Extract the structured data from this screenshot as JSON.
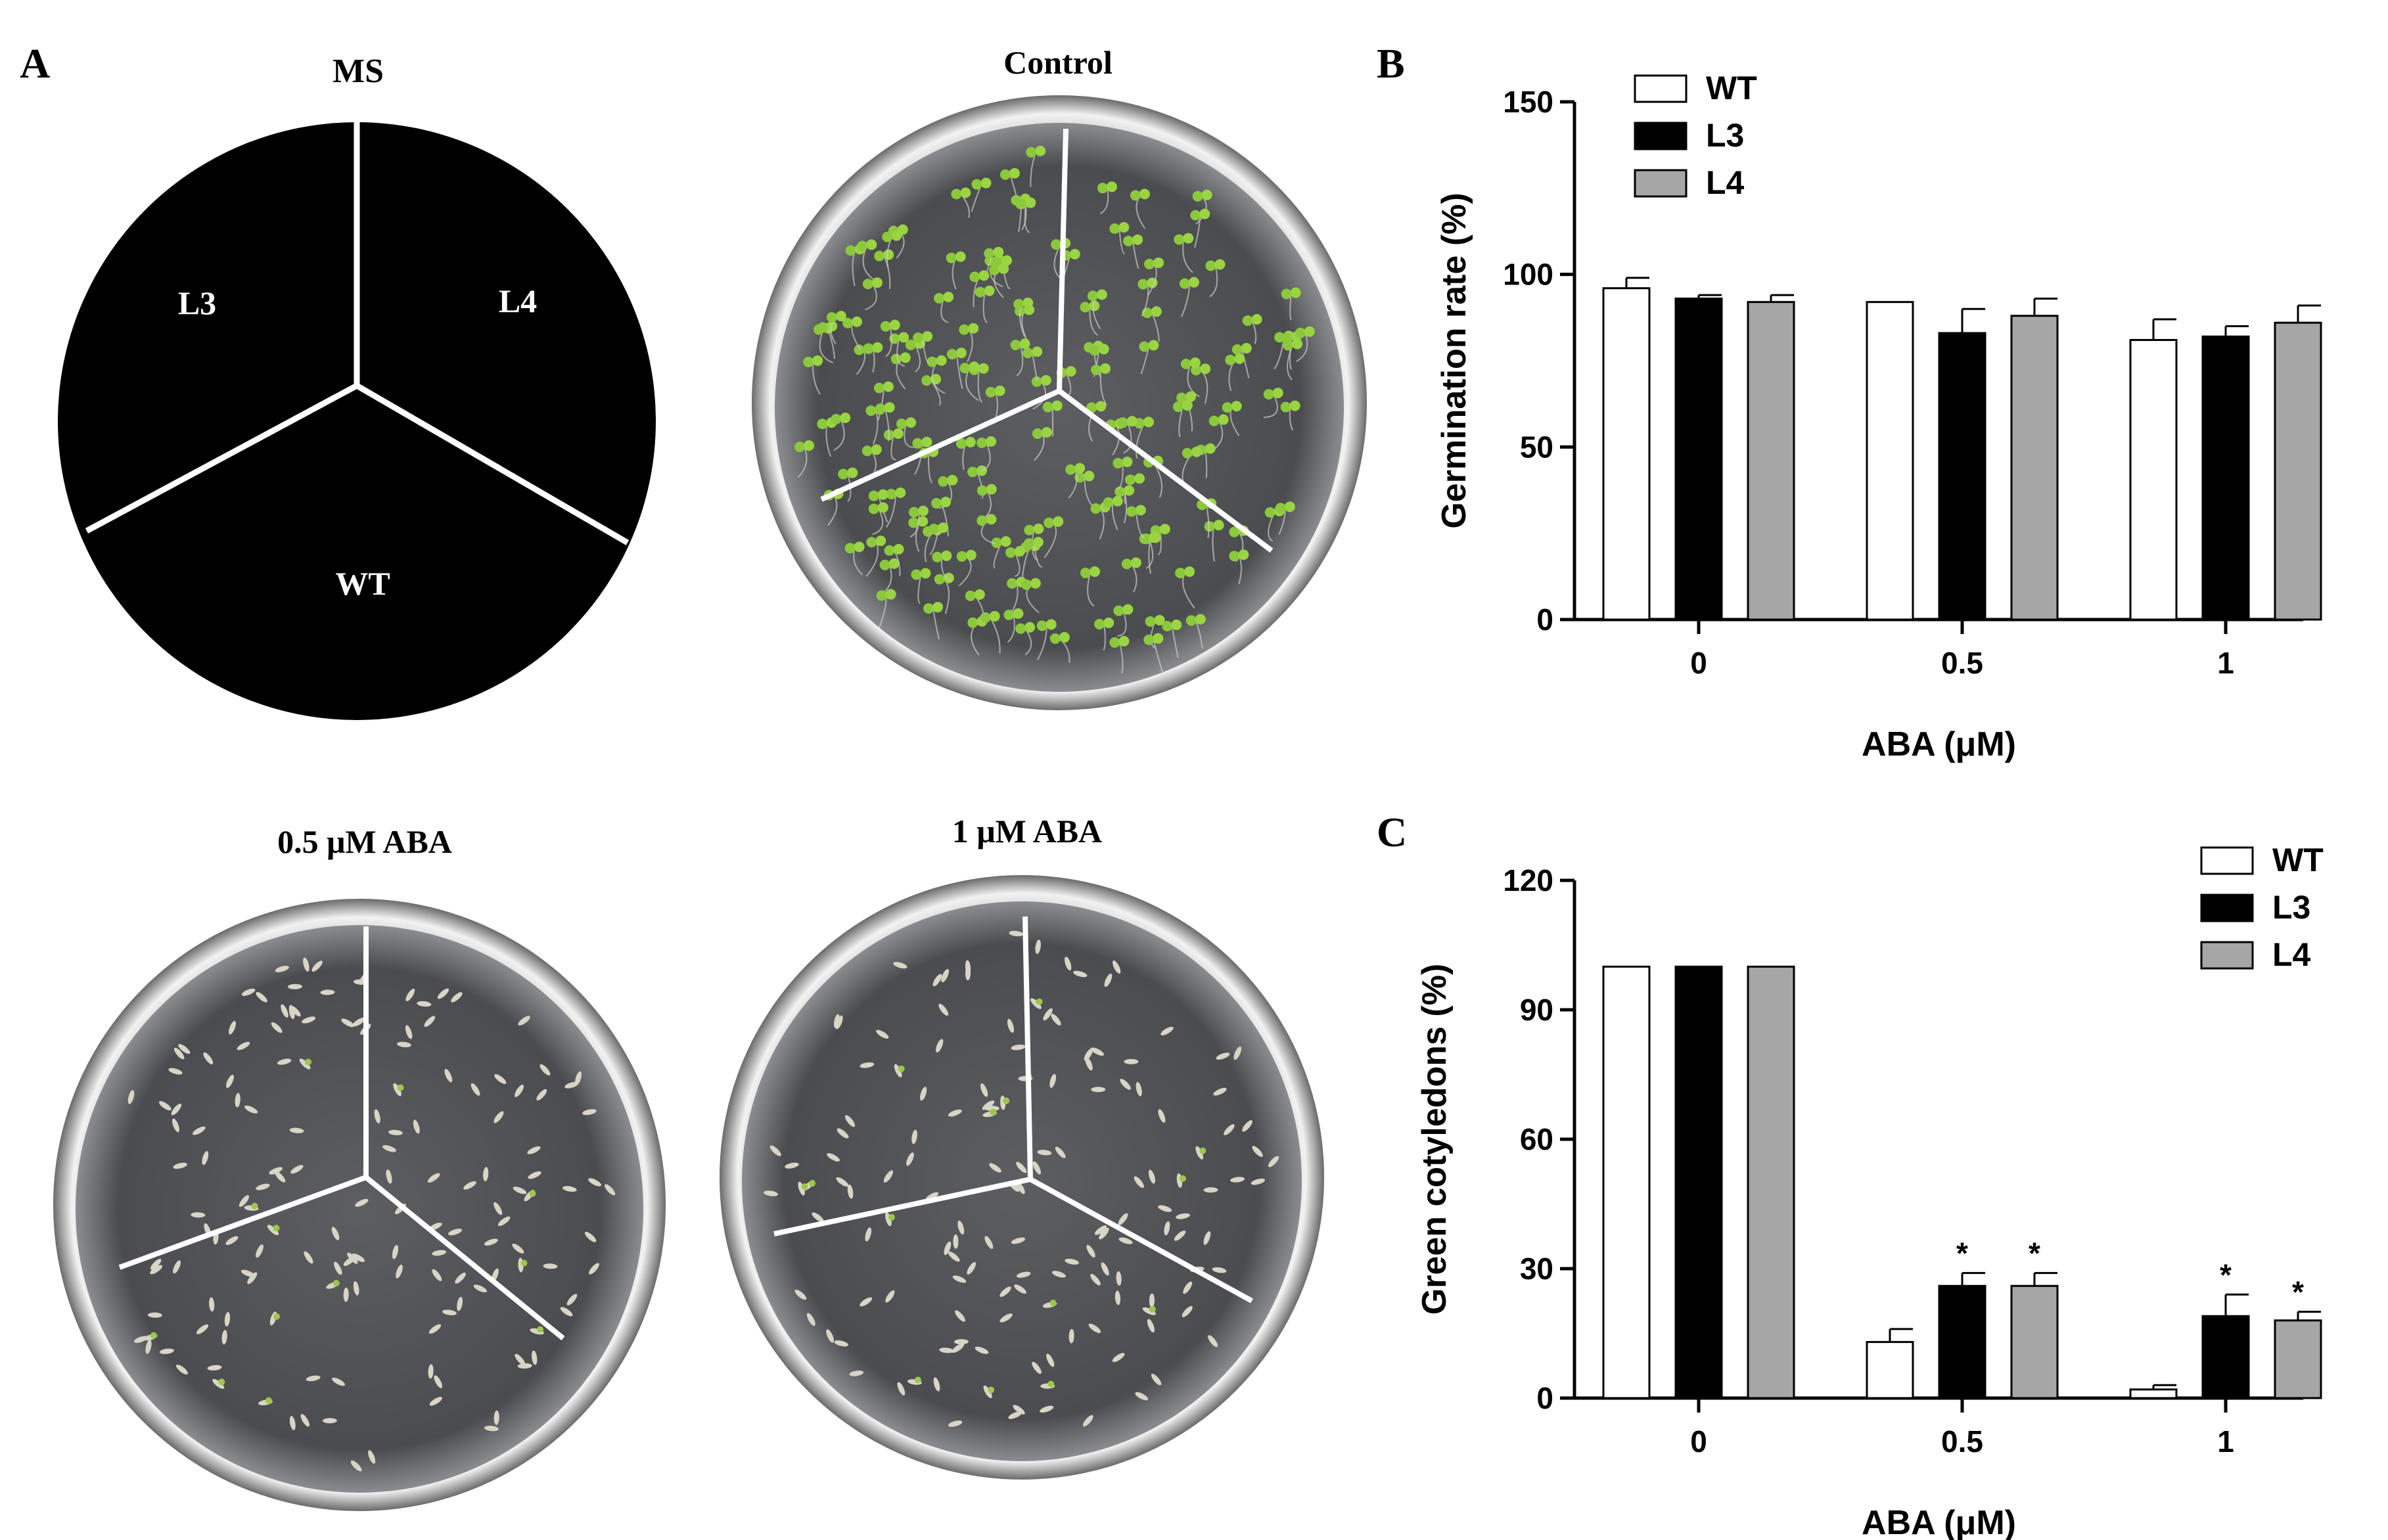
{
  "panel_a": {
    "letter": "A",
    "schematic": {
      "title": "MS",
      "sectors": [
        "L3",
        "L4",
        "WT"
      ]
    },
    "plates": [
      {
        "label": "Control"
      },
      {
        "label": "0.5 μM ABA"
      },
      {
        "label": "1 μM ABA"
      }
    ]
  },
  "colors": {
    "WT": "#ffffff",
    "L3": "#000000",
    "L4": "#a6a6a6"
  },
  "chart_data": [
    {
      "panel": "B",
      "type": "bar",
      "categories": [
        "0",
        "0.5",
        "1"
      ],
      "series": [
        {
          "name": "WT",
          "values": [
            96,
            92,
            81
          ],
          "errors": [
            3,
            0,
            6
          ]
        },
        {
          "name": "L3",
          "values": [
            93,
            83,
            82
          ],
          "errors": [
            1,
            7,
            3
          ]
        },
        {
          "name": "L4",
          "values": [
            92,
            88,
            86
          ],
          "errors": [
            2,
            5,
            5
          ]
        }
      ],
      "significance": [
        [
          "",
          "",
          ""
        ],
        [
          "",
          "",
          ""
        ],
        [
          "",
          "",
          ""
        ]
      ],
      "xlabel": "ABA (μM)",
      "ylabel": "Germination rate (%)",
      "ylim": [
        0,
        150
      ],
      "yticks": [
        "0",
        "50",
        "100",
        "150"
      ],
      "legend": "top-left",
      "grid": false
    },
    {
      "panel": "C",
      "type": "bar",
      "categories": [
        "0",
        "0.5",
        "1"
      ],
      "series": [
        {
          "name": "WT",
          "values": [
            100,
            13,
            2
          ],
          "errors": [
            0,
            3,
            1
          ]
        },
        {
          "name": "L3",
          "values": [
            100,
            26,
            19
          ],
          "errors": [
            0,
            3,
            5
          ]
        },
        {
          "name": "L4",
          "values": [
            100,
            26,
            18
          ],
          "errors": [
            0,
            3,
            2
          ]
        }
      ],
      "significance": [
        [
          "",
          "",
          ""
        ],
        [
          "",
          "*",
          "*"
        ],
        [
          "",
          "*",
          "*"
        ]
      ],
      "xlabel": "ABA (μM)",
      "ylabel": "Green cotyledons (%)",
      "ylim": [
        0,
        120
      ],
      "yticks": [
        "0",
        "30",
        "60",
        "90",
        "120"
      ],
      "legend": "top-right",
      "grid": false
    }
  ]
}
